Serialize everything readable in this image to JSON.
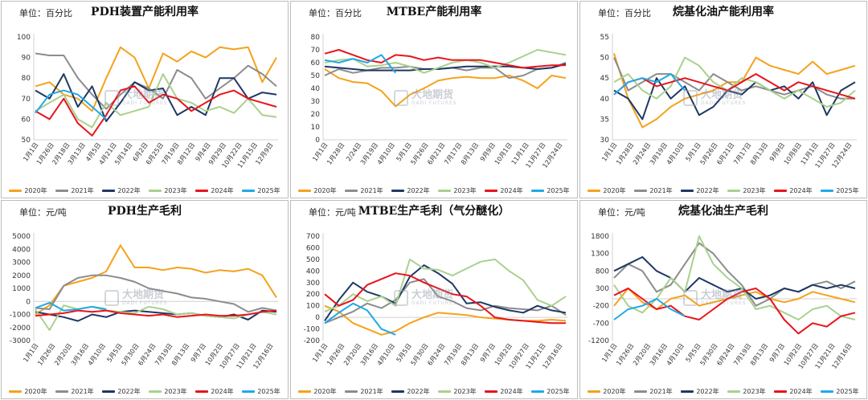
{
  "legend_series": [
    "2020年",
    "2021年",
    "2022年",
    "2023年",
    "2024年",
    "2025年"
  ],
  "series_colors": [
    "#f5a21b",
    "#8c8c8c",
    "#1f3864",
    "#a9d18e",
    "#e8141c",
    "#20a9e6"
  ],
  "watermark": {
    "cn": "大地期货",
    "en": "DADI FUTURES"
  },
  "charts": [
    {
      "title": "PDH装置产能利用率",
      "unit": "单位：百分比",
      "ylim": [
        50,
        100
      ],
      "yticks": [
        "50",
        "60",
        "70",
        "80",
        "90",
        "100"
      ],
      "xticks": [
        "1月1日",
        "1月26日",
        "2月18日",
        "3月13日",
        "4月5日",
        "4月21日",
        "5月14日",
        "6月2日",
        "6月25日",
        "7月19日",
        "8月12日",
        "9月4日",
        "9月29日",
        "10月22日",
        "11月15日",
        "12月9日"
      ]
    },
    {
      "title": "MTBE产能利用率",
      "unit": "单位：百分比",
      "ylim": [
        0,
        80
      ],
      "yticks": [
        "0",
        "10",
        "20",
        "30",
        "40",
        "50",
        "60",
        "70",
        "80"
      ],
      "xticks": [
        "1月1日",
        "1月28日",
        "2/24日",
        "3月19日",
        "4月10日",
        "5月1日",
        "5月26日",
        "6月21日",
        "7月17日",
        "8月13日",
        "9月9日",
        "10月1日",
        "11月1日",
        "11月27日",
        "12月24日"
      ]
    },
    {
      "title": "烷基化油产能利用率",
      "unit": "单位：百分比",
      "ylim": [
        30,
        55
      ],
      "yticks": [
        "30",
        "35",
        "40",
        "45",
        "50",
        "55"
      ],
      "xticks": [
        "1月1日",
        "1月28日",
        "2月24日",
        "3月19日",
        "4月10日",
        "5月1日",
        "5月26日",
        "6月21日",
        "7月17日",
        "8月13日",
        "9月9日",
        "10月8日",
        "11月1日",
        "11月27日",
        "12月24日"
      ]
    },
    {
      "title": "PDH生产毛利",
      "unit": "单位：元/吨",
      "ylim": [
        -3000,
        5000
      ],
      "yticks": [
        "-3000",
        "-2000",
        "-1000",
        "0",
        "1000",
        "2000",
        "3000",
        "4000",
        "5000"
      ],
      "xticks": [
        "1月1日",
        "1月26日",
        "2月20日",
        "3月16日",
        "4月10日",
        "5月5日",
        "5月30日",
        "6月24日",
        "7月19日",
        "8月13日",
        "9月7日",
        "10月2日",
        "10月27日",
        "11月21日",
        "12月16日"
      ]
    },
    {
      "title": "MTBE生产毛利（气分醚化）",
      "unit": "单位：元/吨",
      "ylim": [
        -200,
        700
      ],
      "yticks": [
        "-200",
        "-100",
        "0",
        "100",
        "200",
        "300",
        "400",
        "500",
        "600",
        "700"
      ],
      "xticks": [
        "1月1日",
        "1月26日",
        "2月20日",
        "3月16日",
        "4月10日",
        "5月5日",
        "5月30日",
        "6月24日",
        "7月19日",
        "8月13日",
        "9月7日",
        "10月2日",
        "10月27日",
        "11月21日",
        "12月16日"
      ]
    },
    {
      "title": "烷基化油生产毛利",
      "unit": "单位：元/吨",
      "ylim": [
        -1200,
        1800
      ],
      "yticks": [
        "-1200",
        "-700",
        "-200",
        "300",
        "800",
        "1300",
        "1800"
      ],
      "xticks": [
        "1月1日",
        "1月26日",
        "2月20日",
        "3月16日",
        "4月10日",
        "5月5日",
        "5月30日",
        "6月24日",
        "7月19日",
        "8月13日",
        "9月7日",
        "10月2日",
        "10月27日",
        "11月21日",
        "12月16日"
      ]
    }
  ],
  "chart_data": [
    {
      "type": "line",
      "title": "PDH装置产能利用率",
      "ylabel": "单位：百分比",
      "ylim": [
        50,
        100
      ],
      "series": [
        {
          "name": "2020年",
          "values": [
            76,
            78,
            72,
            70,
            64,
            80,
            95,
            90,
            75,
            92,
            88,
            93,
            90,
            95,
            94,
            95,
            78,
            90
          ]
        },
        {
          "name": "2021年",
          "values": [
            92,
            91,
            91,
            80,
            72,
            65,
            72,
            78,
            75,
            70,
            84,
            80,
            70,
            75,
            80,
            86,
            82,
            76
          ]
        },
        {
          "name": "2022年",
          "values": [
            74,
            70,
            82,
            66,
            76,
            59,
            68,
            78,
            74,
            75,
            62,
            66,
            62,
            80,
            80,
            70,
            73,
            72
          ]
        },
        {
          "name": "2023年",
          "values": [
            64,
            68,
            72,
            60,
            56,
            68,
            62,
            64,
            66,
            82,
            70,
            68,
            64,
            66,
            63,
            70,
            62,
            61
          ]
        },
        {
          "name": "2024年",
          "values": [
            64,
            60,
            70,
            58,
            52,
            62,
            74,
            76,
            68,
            72,
            70,
            64,
            68,
            72,
            74,
            70,
            68,
            66
          ]
        },
        {
          "name": "2025年",
          "values": [
            63,
            72,
            74,
            72,
            66,
            60,
            null,
            null,
            null,
            null,
            null,
            null,
            null,
            null,
            null,
            null,
            null,
            null
          ]
        }
      ]
    },
    {
      "type": "line",
      "title": "MTBE产能利用率",
      "ylabel": "单位：百分比",
      "ylim": [
        0,
        80
      ],
      "series": [
        {
          "name": "2020年",
          "values": [
            55,
            48,
            45,
            44,
            38,
            26,
            35,
            40,
            46,
            48,
            49,
            48,
            48,
            50,
            46,
            40,
            50,
            48
          ]
        },
        {
          "name": "2021年",
          "values": [
            50,
            55,
            52,
            54,
            56,
            56,
            57,
            55,
            55,
            56,
            54,
            56,
            56,
            48,
            50,
            55,
            56,
            60
          ]
        },
        {
          "name": "2022年",
          "values": [
            57,
            56,
            55,
            54,
            54,
            54,
            54,
            55,
            55,
            56,
            57,
            57,
            57,
            57,
            56,
            55,
            56,
            59
          ]
        },
        {
          "name": "2023年",
          "values": [
            60,
            62,
            63,
            57,
            58,
            60,
            57,
            52,
            56,
            60,
            62,
            60,
            56,
            60,
            65,
            70,
            68,
            66
          ]
        },
        {
          "name": "2024年",
          "values": [
            67,
            70,
            66,
            62,
            60,
            66,
            65,
            62,
            64,
            62,
            62,
            62,
            60,
            58,
            56,
            57,
            58,
            58
          ]
        },
        {
          "name": "2025年",
          "values": [
            62,
            60,
            63,
            60,
            66,
            52,
            null,
            null,
            null,
            null,
            null,
            null,
            null,
            null,
            null,
            null,
            null,
            null
          ]
        }
      ]
    },
    {
      "type": "line",
      "title": "烷基化油产能利用率",
      "ylabel": "单位：百分比",
      "ylim": [
        30,
        55
      ],
      "series": [
        {
          "name": "2020年",
          "values": [
            51,
            40,
            33,
            35,
            38,
            40,
            41,
            42,
            44,
            44,
            50,
            48,
            47,
            46,
            49,
            46,
            47,
            48
          ]
        },
        {
          "name": "2021年",
          "values": [
            50,
            42,
            44,
            46,
            46,
            44,
            42,
            46,
            44,
            42,
            43,
            42,
            41,
            42,
            43,
            41,
            40,
            40
          ]
        },
        {
          "name": "2022年",
          "values": [
            42,
            40,
            35,
            45,
            40,
            43,
            36,
            38,
            42,
            41,
            44,
            42,
            43,
            40,
            44,
            36,
            42,
            44
          ]
        },
        {
          "name": "2023年",
          "values": [
            44,
            46,
            42,
            40,
            43,
            50,
            48,
            44,
            42,
            45,
            44,
            42,
            40,
            42,
            40,
            38,
            39,
            42
          ]
        },
        {
          "name": "2024年",
          "values": [
            41,
            44,
            45,
            43,
            44,
            45,
            44,
            43,
            42,
            44,
            46,
            44,
            42,
            44,
            43,
            42,
            41,
            40
          ]
        },
        {
          "name": "2025年",
          "values": [
            41,
            44,
            45,
            44,
            46,
            42,
            null,
            null,
            null,
            null,
            null,
            null,
            null,
            null,
            null,
            null,
            null,
            null
          ]
        }
      ]
    },
    {
      "type": "line",
      "title": "PDH生产毛利",
      "ylabel": "单位：元/吨",
      "ylim": [
        -3000,
        5000
      ],
      "series": [
        {
          "name": "2020年",
          "values": [
            -1000,
            -300,
            1200,
            1500,
            1800,
            2300,
            4300,
            2600,
            2600,
            2400,
            2600,
            2500,
            2200,
            2400,
            2300,
            2500,
            2000,
            300
          ]
        },
        {
          "name": "2021年",
          "values": [
            -500,
            -600,
            1200,
            1800,
            2000,
            2000,
            1800,
            1500,
            1000,
            800,
            600,
            300,
            200,
            0,
            -200,
            -800,
            -500,
            -700
          ]
        },
        {
          "name": "2022年",
          "values": [
            -800,
            -1000,
            -1200,
            -1500,
            -1000,
            -1200,
            -800,
            -700,
            -800,
            -900,
            -1000,
            -900,
            -1100,
            -1200,
            -1000,
            -1400,
            -700,
            -800
          ]
        },
        {
          "name": "2023年",
          "values": [
            -600,
            -2200,
            -300,
            -600,
            -400,
            -700,
            -800,
            -900,
            -400,
            -600,
            -1000,
            -900,
            -1100,
            -1200,
            -1300,
            -1000,
            -800,
            -1000
          ]
        },
        {
          "name": "2024年",
          "values": [
            -1100,
            -1000,
            -900,
            -700,
            -800,
            -700,
            -900,
            -1000,
            -1100,
            -1000,
            -1200,
            -1100,
            -1000,
            -1100,
            -1100,
            -1000,
            -800,
            -700
          ]
        },
        {
          "name": "2025年",
          "values": [
            -500,
            -100,
            -700,
            -600,
            -400,
            -600,
            null,
            null,
            null,
            null,
            null,
            null,
            null,
            null,
            null,
            null,
            null,
            null
          ]
        }
      ]
    },
    {
      "type": "line",
      "title": "MTBE生产毛利（气分醚化）",
      "ylabel": "单位：元/吨",
      "ylim": [
        -200,
        700
      ],
      "series": [
        {
          "name": "2020年",
          "values": [
            100,
            50,
            -50,
            -100,
            -150,
            -120,
            -50,
            0,
            40,
            30,
            20,
            0,
            -10,
            -20,
            -30,
            -30,
            -20,
            -30
          ]
        },
        {
          "name": "2021年",
          "values": [
            -50,
            0,
            50,
            120,
            80,
            150,
            300,
            330,
            180,
            140,
            80,
            60,
            100,
            80,
            70,
            60,
            100,
            20
          ]
        },
        {
          "name": "2022年",
          "values": [
            -30,
            150,
            300,
            220,
            180,
            120,
            350,
            450,
            380,
            290,
            120,
            130,
            90,
            60,
            40,
            100,
            60,
            40
          ]
        },
        {
          "name": "2023年",
          "values": [
            50,
            100,
            200,
            140,
            180,
            100,
            500,
            420,
            410,
            360,
            420,
            480,
            500,
            400,
            320,
            150,
            100,
            180
          ]
        },
        {
          "name": "2024年",
          "values": [
            200,
            100,
            150,
            280,
            330,
            380,
            360,
            300,
            250,
            200,
            180,
            100,
            0,
            -20,
            -30,
            -40,
            -50,
            -50
          ]
        },
        {
          "name": "2025年",
          "values": [
            -50,
            40,
            120,
            60,
            -100,
            -150,
            null,
            null,
            null,
            null,
            null,
            null,
            null,
            null,
            null,
            null,
            null,
            null
          ]
        }
      ]
    },
    {
      "type": "line",
      "title": "烷基化油生产毛利",
      "ylabel": "单位：元/吨",
      "ylim": [
        -1200,
        1800
      ],
      "series": [
        {
          "name": "2020年",
          "values": [
            -200,
            300,
            -100,
            -300,
            0,
            100,
            -200,
            -100,
            0,
            100,
            200,
            0,
            -100,
            0,
            200,
            100,
            0,
            -100
          ]
        },
        {
          "name": "2021年",
          "values": [
            600,
            1000,
            800,
            200,
            400,
            1000,
            1600,
            1300,
            800,
            400,
            -200,
            0,
            300,
            200,
            400,
            500,
            300,
            500
          ]
        },
        {
          "name": "2022年",
          "values": [
            800,
            1000,
            1200,
            800,
            600,
            200,
            600,
            400,
            200,
            300,
            0,
            100,
            300,
            200,
            400,
            300,
            400,
            300
          ]
        },
        {
          "name": "2023年",
          "values": [
            400,
            -200,
            -400,
            0,
            600,
            200,
            1800,
            1000,
            600,
            300,
            -300,
            -200,
            -400,
            -600,
            -300,
            -200,
            -500,
            -600
          ]
        },
        {
          "name": "2024年",
          "values": [
            100,
            300,
            0,
            -300,
            -200,
            -500,
            -600,
            -300,
            0,
            200,
            300,
            0,
            -600,
            -1000,
            -700,
            -800,
            -500,
            -400
          ]
        },
        {
          "name": "2025年",
          "values": [
            -600,
            -300,
            -200,
            0,
            -300,
            -500,
            null,
            null,
            null,
            null,
            null,
            null,
            null,
            null,
            null,
            null,
            null,
            null
          ]
        }
      ]
    }
  ]
}
